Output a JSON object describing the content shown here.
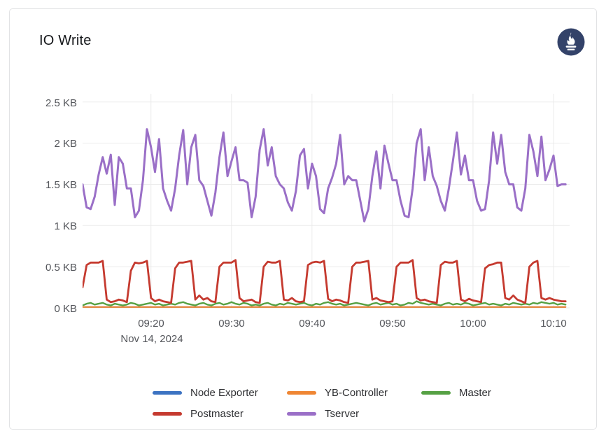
{
  "panel": {
    "title": "IO Write",
    "logo": {
      "name": "prometheus-logo",
      "bg_color": "#334269",
      "glyph_color": "#ffffff"
    }
  },
  "chart_data": {
    "type": "line",
    "title": "IO Write",
    "unit": "KB",
    "grid": true,
    "legend_position": "bottom",
    "x_axis": {
      "date_label": "Nov 14, 2024",
      "start_time": "09:11:30",
      "end_time": "10:11:30",
      "step_seconds": 30,
      "range_minutes": [
        551.5,
        612
      ],
      "ticks": [
        {
          "label": "09:20",
          "minute": 560
        },
        {
          "label": "09:30",
          "minute": 570
        },
        {
          "label": "09:40",
          "minute": 580
        },
        {
          "label": "09:50",
          "minute": 590
        },
        {
          "label": "10:00",
          "minute": 600
        },
        {
          "label": "10:10",
          "minute": 610
        }
      ]
    },
    "y_axis": {
      "range": [
        0,
        2.6
      ],
      "ticks": [
        {
          "label": "0 KB",
          "value": 0
        },
        {
          "label": "0.5 KB",
          "value": 0.5
        },
        {
          "label": "1 KB",
          "value": 1
        },
        {
          "label": "1.5 KB",
          "value": 1.5
        },
        {
          "label": "2 KB",
          "value": 2
        },
        {
          "label": "2.5 KB",
          "value": 2.5
        }
      ]
    },
    "series": [
      {
        "name": "Node Exporter",
        "color": "#3c73c2",
        "width": 2,
        "values": [
          0.01,
          0.01,
          0.01,
          0.01,
          0.01,
          0.01,
          0.01,
          0.01,
          0.01,
          0.01,
          0.01,
          0.01,
          0.01,
          0.01,
          0.01,
          0.01,
          0.01,
          0.01,
          0.01,
          0.01,
          0.01,
          0.01,
          0.01,
          0.01,
          0.01,
          0.01,
          0.01,
          0.01,
          0.01,
          0.01,
          0.01,
          0.01,
          0.01,
          0.01,
          0.01,
          0.01,
          0.01,
          0.01,
          0.01,
          0.01,
          0.01,
          0.01,
          0.01,
          0.01,
          0.01,
          0.01,
          0.01,
          0.01,
          0.01,
          0.01,
          0.01,
          0.01,
          0.01,
          0.01,
          0.01,
          0.01,
          0.01,
          0.01,
          0.01,
          0.01,
          0.01,
          0.01,
          0.01,
          0.01,
          0.01,
          0.01,
          0.01,
          0.01,
          0.01,
          0.01,
          0.01,
          0.01,
          0.01,
          0.01,
          0.01,
          0.01,
          0.01,
          0.01,
          0.01,
          0.01,
          0.01,
          0.01,
          0.01,
          0.01,
          0.01,
          0.01,
          0.01,
          0.01,
          0.01,
          0.01,
          0.01,
          0.01,
          0.01,
          0.01,
          0.01,
          0.01,
          0.01,
          0.01,
          0.01,
          0.01,
          0.01,
          0.01,
          0.01,
          0.01,
          0.01,
          0.01,
          0.01,
          0.01,
          0.01,
          0.01,
          0.01,
          0.01,
          0.01,
          0.01,
          0.01,
          0.01,
          0.01,
          0.01,
          0.01,
          0.01,
          0.01
        ]
      },
      {
        "name": "YB-Controller",
        "color": "#ef8633",
        "width": 2.2,
        "values": [
          0.01,
          0.01,
          0.01,
          0.01,
          0.01,
          0.01,
          0.01,
          0.01,
          0.01,
          0.01,
          0.01,
          0.01,
          0.01,
          0.01,
          0.01,
          0.01,
          0.01,
          0.01,
          0.01,
          0.01,
          0.01,
          0.01,
          0.01,
          0.01,
          0.01,
          0.01,
          0.01,
          0.01,
          0.01,
          0.01,
          0.01,
          0.01,
          0.01,
          0.01,
          0.01,
          0.01,
          0.01,
          0.01,
          0.01,
          0.01,
          0.01,
          0.01,
          0.01,
          0.01,
          0.01,
          0.01,
          0.01,
          0.01,
          0.01,
          0.01,
          0.01,
          0.01,
          0.01,
          0.01,
          0.01,
          0.01,
          0.01,
          0.01,
          0.01,
          0.01,
          0.01,
          0.01,
          0.01,
          0.01,
          0.01,
          0.01,
          0.01,
          0.01,
          0.01,
          0.01,
          0.01,
          0.01,
          0.01,
          0.01,
          0.01,
          0.01,
          0.01,
          0.01,
          0.01,
          0.01,
          0.01,
          0.01,
          0.01,
          0.01,
          0.01,
          0.01,
          0.01,
          0.01,
          0.01,
          0.01,
          0.01,
          0.01,
          0.01,
          0.01,
          0.01,
          0.01,
          0.01,
          0.01,
          0.01,
          0.01,
          0.01,
          0.01,
          0.01,
          0.01,
          0.01,
          0.01,
          0.01,
          0.01,
          0.01,
          0.01,
          0.01,
          0.01,
          0.01,
          0.01,
          0.01,
          0.01,
          0.01,
          0.01,
          0.01,
          0.01,
          0.01
        ]
      },
      {
        "name": "Master",
        "color": "#56a144",
        "width": 2.4,
        "values": [
          0.03,
          0.05,
          0.06,
          0.04,
          0.05,
          0.06,
          0.04,
          0.03,
          0.05,
          0.04,
          0.03,
          0.04,
          0.06,
          0.05,
          0.03,
          0.04,
          0.05,
          0.06,
          0.04,
          0.05,
          0.03,
          0.04,
          0.05,
          0.04,
          0.06,
          0.07,
          0.05,
          0.04,
          0.03,
          0.05,
          0.06,
          0.04,
          0.03,
          0.05,
          0.06,
          0.04,
          0.05,
          0.07,
          0.05,
          0.04,
          0.06,
          0.05,
          0.03,
          0.04,
          0.03,
          0.05,
          0.06,
          0.04,
          0.03,
          0.05,
          0.04,
          0.06,
          0.05,
          0.04,
          0.05,
          0.06,
          0.04,
          0.03,
          0.05,
          0.04,
          0.06,
          0.07,
          0.05,
          0.04,
          0.05,
          0.03,
          0.04,
          0.05,
          0.06,
          0.05,
          0.04,
          0.03,
          0.05,
          0.06,
          0.04,
          0.05,
          0.06,
          0.04,
          0.05,
          0.03,
          0.04,
          0.06,
          0.05,
          0.08,
          0.06,
          0.05,
          0.04,
          0.05,
          0.04,
          0.03,
          0.05,
          0.06,
          0.04,
          0.05,
          0.04,
          0.06,
          0.05,
          0.03,
          0.04,
          0.05,
          0.06,
          0.04,
          0.05,
          0.04,
          0.03,
          0.05,
          0.04,
          0.06,
          0.05,
          0.04,
          0.05,
          0.04,
          0.06,
          0.05,
          0.07,
          0.06,
          0.05,
          0.06,
          0.04,
          0.05,
          0.04
        ]
      },
      {
        "name": "Postmaster",
        "color": "#c53a2f",
        "width": 2.8,
        "values": [
          0.25,
          0.52,
          0.55,
          0.55,
          0.55,
          0.57,
          0.1,
          0.07,
          0.08,
          0.1,
          0.09,
          0.07,
          0.45,
          0.55,
          0.54,
          0.55,
          0.57,
          0.12,
          0.08,
          0.1,
          0.08,
          0.07,
          0.06,
          0.48,
          0.55,
          0.55,
          0.56,
          0.57,
          0.1,
          0.15,
          0.1,
          0.12,
          0.08,
          0.07,
          0.5,
          0.55,
          0.55,
          0.55,
          0.58,
          0.12,
          0.08,
          0.09,
          0.1,
          0.07,
          0.06,
          0.5,
          0.56,
          0.55,
          0.55,
          0.57,
          0.1,
          0.09,
          0.12,
          0.08,
          0.07,
          0.08,
          0.52,
          0.55,
          0.56,
          0.55,
          0.57,
          0.11,
          0.08,
          0.1,
          0.09,
          0.07,
          0.06,
          0.5,
          0.55,
          0.55,
          0.56,
          0.57,
          0.1,
          0.12,
          0.09,
          0.08,
          0.07,
          0.08,
          0.5,
          0.55,
          0.55,
          0.55,
          0.58,
          0.12,
          0.09,
          0.1,
          0.08,
          0.07,
          0.06,
          0.52,
          0.56,
          0.55,
          0.55,
          0.57,
          0.1,
          0.08,
          0.11,
          0.09,
          0.08,
          0.07,
          0.48,
          0.52,
          0.53,
          0.55,
          0.55,
          0.12,
          0.1,
          0.15,
          0.1,
          0.08,
          0.06,
          0.5,
          0.55,
          0.57,
          0.12,
          0.1,
          0.12,
          0.1,
          0.09,
          0.08,
          0.08
        ]
      },
      {
        "name": "Tserver",
        "color": "#9a6fc7",
        "width": 3,
        "values": [
          1.5,
          1.22,
          1.2,
          1.35,
          1.62,
          1.83,
          1.63,
          1.86,
          1.25,
          1.83,
          1.75,
          1.45,
          1.45,
          1.1,
          1.18,
          1.55,
          2.17,
          1.95,
          1.65,
          2.05,
          1.45,
          1.3,
          1.18,
          1.45,
          1.85,
          2.16,
          1.5,
          1.95,
          2.1,
          1.55,
          1.48,
          1.3,
          1.12,
          1.4,
          1.83,
          2.13,
          1.6,
          1.78,
          1.95,
          1.55,
          1.55,
          1.52,
          1.1,
          1.35,
          1.92,
          2.17,
          1.73,
          1.95,
          1.6,
          1.5,
          1.45,
          1.28,
          1.18,
          1.42,
          1.85,
          1.93,
          1.45,
          1.75,
          1.6,
          1.2,
          1.15,
          1.45,
          1.58,
          1.75,
          2.1,
          1.5,
          1.6,
          1.55,
          1.55,
          1.3,
          1.05,
          1.2,
          1.6,
          1.9,
          1.45,
          1.97,
          1.75,
          1.55,
          1.55,
          1.3,
          1.12,
          1.1,
          1.45,
          2.0,
          2.17,
          1.55,
          1.95,
          1.6,
          1.48,
          1.3,
          1.18,
          1.45,
          1.78,
          2.13,
          1.62,
          1.85,
          1.55,
          1.55,
          1.3,
          1.18,
          1.2,
          1.55,
          2.13,
          1.75,
          2.1,
          1.65,
          1.5,
          1.5,
          1.22,
          1.18,
          1.45,
          2.1,
          1.9,
          1.6,
          2.08,
          1.55,
          1.68,
          1.85,
          1.48,
          1.5,
          1.5
        ]
      }
    ]
  }
}
